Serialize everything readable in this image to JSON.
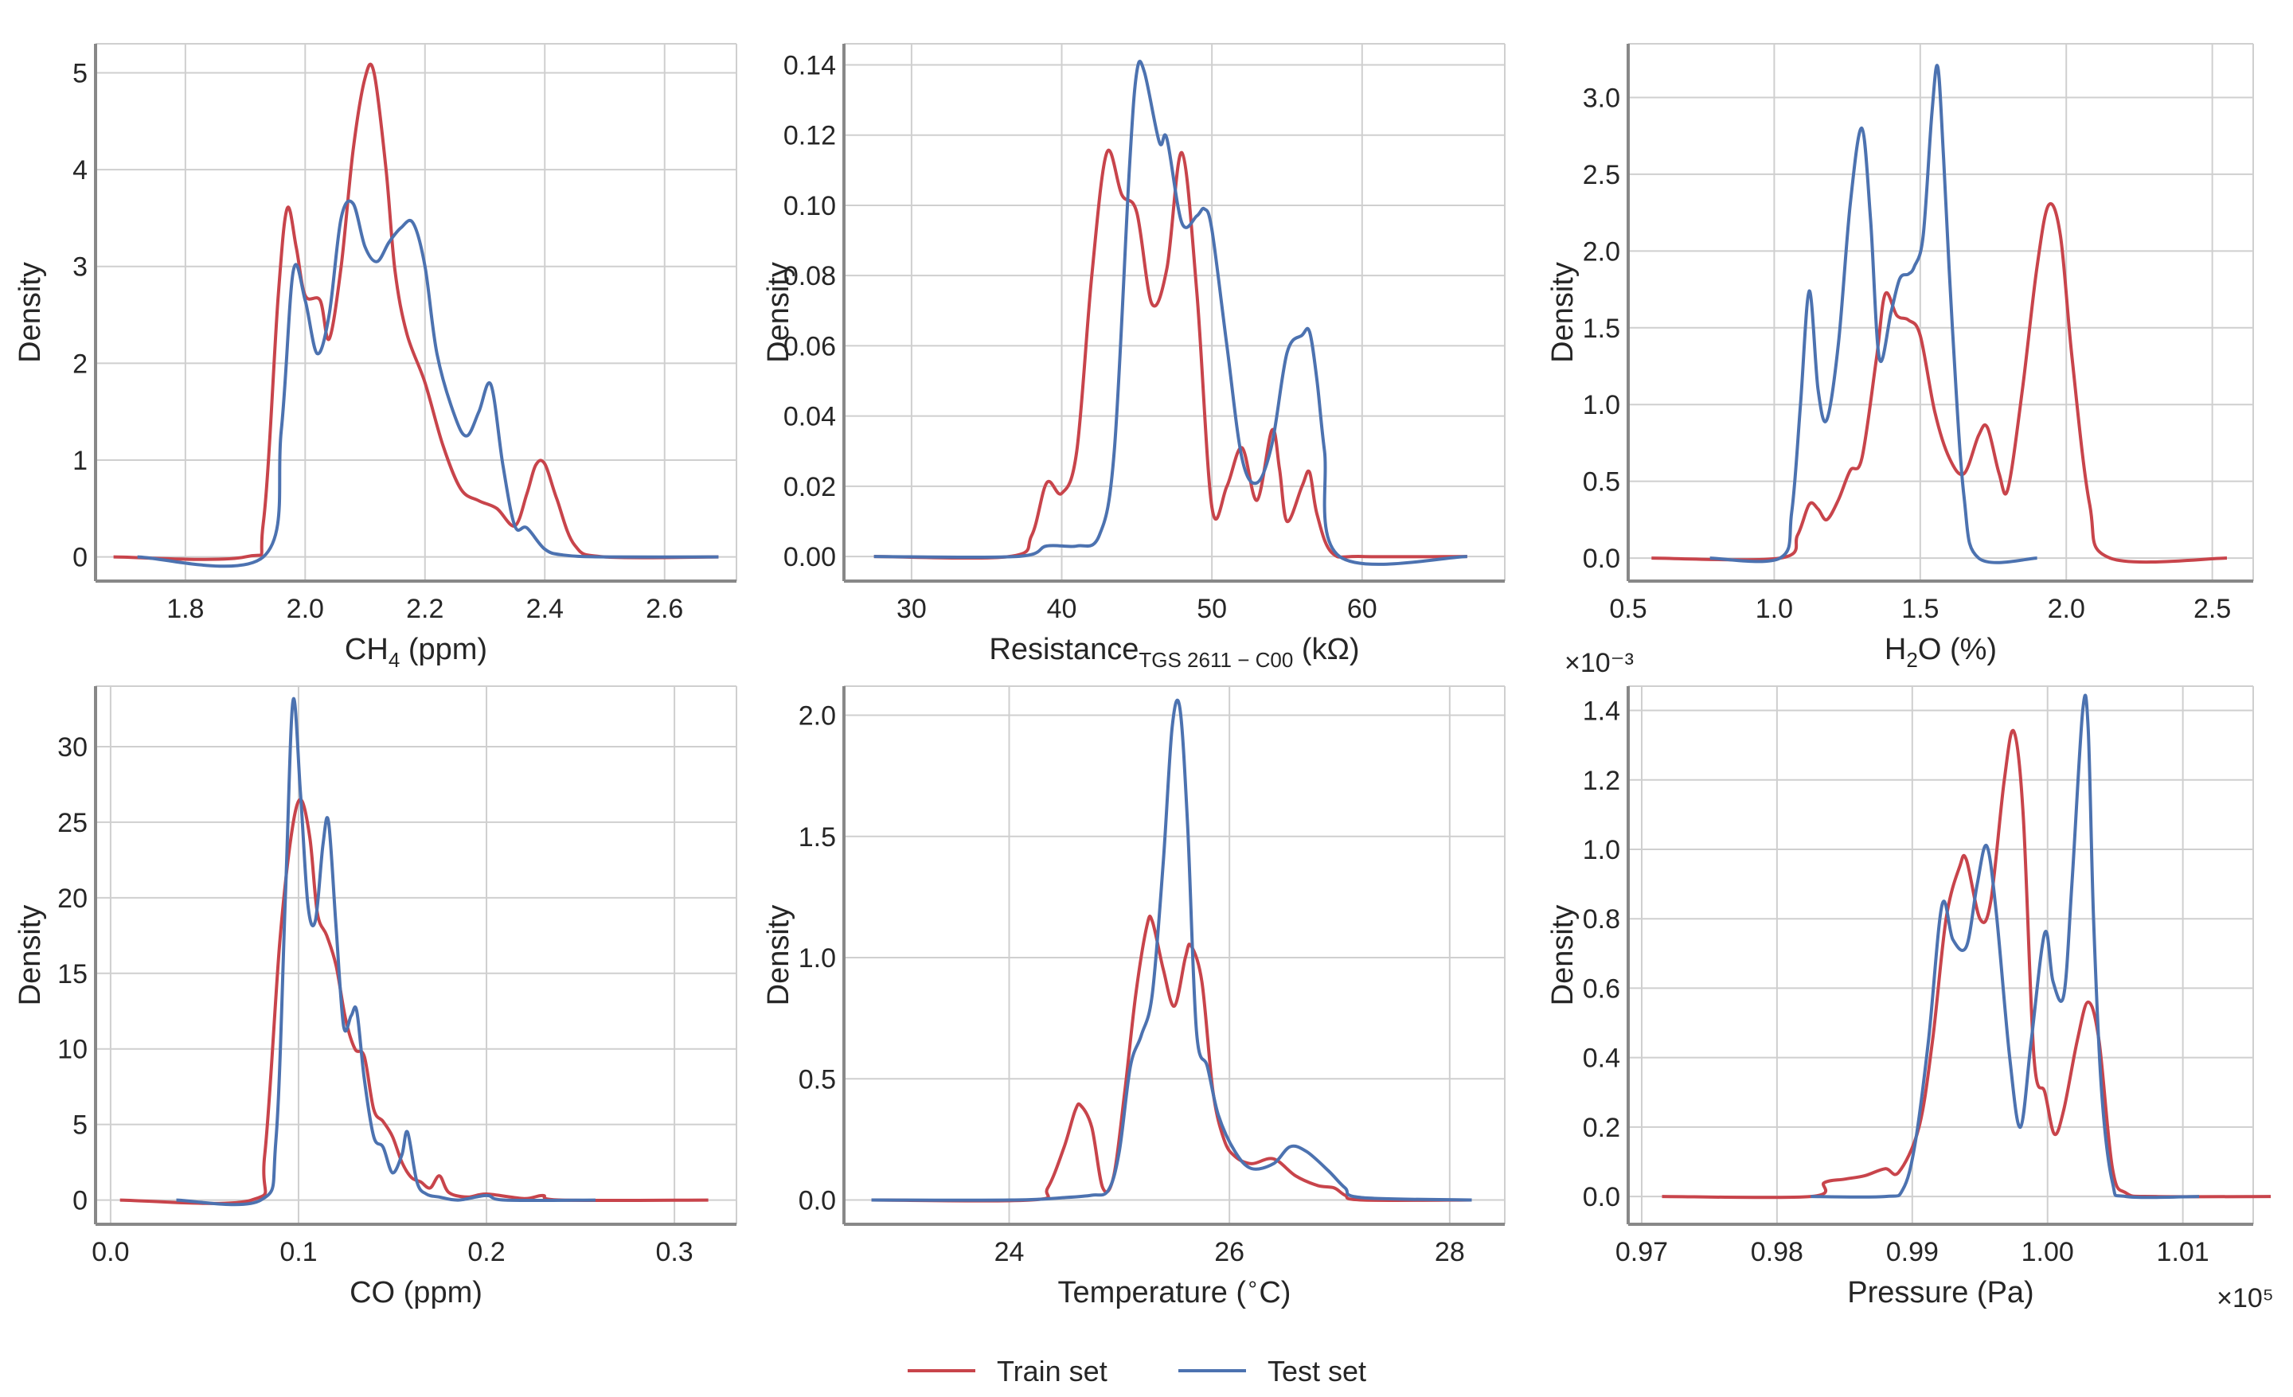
{
  "colors": {
    "train": "#c8444b",
    "test": "#4c72b0",
    "grid": "#cfcfcf",
    "spine": "#888888"
  },
  "legend": {
    "train_label": "Train set",
    "test_label": "Test set"
  },
  "chart_data": [
    {
      "type": "line",
      "title": "",
      "xlabel_main": "CH",
      "xlabel_sub": "4",
      "xlabel_rest": " (ppm)",
      "ylabel": "Density",
      "xlim": [
        1.65,
        2.72
      ],
      "ylim": [
        -0.25,
        5.3
      ],
      "xticks": [
        1.8,
        2.0,
        2.2,
        2.4,
        2.6
      ],
      "xtick_labels": [
        "1.8",
        "2.0",
        "2.2",
        "2.4",
        "2.6"
      ],
      "yticks": [
        0,
        1,
        2,
        3,
        4,
        5
      ],
      "ytick_labels": [
        "0",
        "1",
        "2",
        "3",
        "4",
        "5"
      ],
      "series": [
        {
          "name": "Train set",
          "x": [
            1.68,
            1.9,
            1.93,
            1.955,
            1.97,
            1.985,
            2.0,
            2.025,
            2.04,
            2.06,
            2.08,
            2.1,
            2.115,
            2.135,
            2.15,
            2.17,
            2.2,
            2.23,
            2.26,
            2.29,
            2.32,
            2.35,
            2.37,
            2.385,
            2.4,
            2.42,
            2.45,
            2.5,
            2.69
          ],
          "y": [
            0,
            0,
            0.35,
            2.7,
            3.6,
            3.2,
            2.7,
            2.65,
            2.25,
            3.0,
            4.2,
            4.95,
            5.0,
            4.0,
            2.95,
            2.3,
            1.8,
            1.15,
            0.7,
            0.58,
            0.5,
            0.32,
            0.65,
            0.95,
            0.96,
            0.6,
            0.12,
            0,
            0
          ]
        },
        {
          "name": "Test set",
          "x": [
            1.72,
            1.93,
            1.96,
            1.98,
            2.0,
            2.02,
            2.04,
            2.06,
            2.08,
            2.1,
            2.12,
            2.14,
            2.16,
            2.18,
            2.2,
            2.22,
            2.25,
            2.27,
            2.29,
            2.31,
            2.33,
            2.35,
            2.37,
            2.4,
            2.43,
            2.5,
            2.69
          ],
          "y": [
            0,
            0,
            1.3,
            2.95,
            2.65,
            2.1,
            2.5,
            3.5,
            3.65,
            3.2,
            3.05,
            3.25,
            3.4,
            3.45,
            3.0,
            2.1,
            1.45,
            1.25,
            1.5,
            1.78,
            0.95,
            0.32,
            0.3,
            0.08,
            0.02,
            0,
            0
          ]
        }
      ]
    },
    {
      "type": "line",
      "title": "",
      "xlabel_main": "Resistance",
      "xlabel_sub": "TGS 2611 − C00",
      "xlabel_rest": " (kΩ)",
      "ylabel": "Density",
      "xlim": [
        25.5,
        69.5
      ],
      "ylim": [
        -0.007,
        0.146
      ],
      "xticks": [
        30,
        40,
        50,
        60
      ],
      "xtick_labels": [
        "30",
        "40",
        "50",
        "60"
      ],
      "yticks": [
        0,
        0.02,
        0.04,
        0.06,
        0.08,
        0.1,
        0.12,
        0.14
      ],
      "ytick_labels": [
        "0.00",
        "0.02",
        "0.04",
        "0.06",
        "0.08",
        "0.10",
        "0.12",
        "0.14"
      ],
      "series": [
        {
          "name": "Train set",
          "x": [
            27.5,
            36.5,
            38,
            39,
            40,
            41,
            42,
            43,
            44,
            45,
            46,
            47,
            48,
            49,
            50,
            51,
            52,
            53,
            54,
            54.5,
            55,
            56,
            56.5,
            57,
            58,
            60,
            67
          ],
          "y": [
            0,
            0,
            0.006,
            0.021,
            0.018,
            0.03,
            0.08,
            0.115,
            0.103,
            0.098,
            0.072,
            0.082,
            0.115,
            0.075,
            0.014,
            0.02,
            0.031,
            0.016,
            0.036,
            0.025,
            0.01,
            0.02,
            0.024,
            0.012,
            0.001,
            0,
            0
          ]
        },
        {
          "name": "Test set",
          "x": [
            27.5,
            37,
            39,
            41,
            42.5,
            43.5,
            44.5,
            45,
            45.5,
            46.5,
            47,
            48,
            49,
            49.5,
            50,
            51,
            52,
            53,
            54,
            55,
            56,
            56.5,
            57,
            57.5,
            58.5,
            67
          ],
          "y": [
            0,
            0,
            0.003,
            0.003,
            0.006,
            0.03,
            0.11,
            0.138,
            0.138,
            0.118,
            0.119,
            0.095,
            0.097,
            0.099,
            0.093,
            0.06,
            0.028,
            0.021,
            0.032,
            0.058,
            0.063,
            0.064,
            0.05,
            0.03,
            0,
            0
          ]
        }
      ]
    },
    {
      "type": "line",
      "title": "",
      "xlabel_main": "H",
      "xlabel_sub": "2",
      "xlabel_rest": "O (%)",
      "ylabel": "Density",
      "xlim": [
        0.5,
        2.64
      ],
      "ylim": [
        -0.15,
        3.35
      ],
      "xticks": [
        0.5,
        1.0,
        1.5,
        2.0,
        2.5
      ],
      "xtick_labels": [
        "0.5",
        "1.0",
        "1.5",
        "2.0",
        "2.5"
      ],
      "yticks": [
        0,
        0.5,
        1.0,
        1.5,
        2.0,
        2.5,
        3.0
      ],
      "ytick_labels": [
        "0.0",
        "0.5",
        "1.0",
        "1.5",
        "2.0",
        "2.5",
        "3.0"
      ],
      "series": [
        {
          "name": "Train set",
          "x": [
            0.58,
            1.02,
            1.08,
            1.12,
            1.15,
            1.18,
            1.22,
            1.26,
            1.3,
            1.35,
            1.38,
            1.42,
            1.46,
            1.5,
            1.55,
            1.6,
            1.65,
            1.7,
            1.73,
            1.77,
            1.8,
            1.85,
            1.9,
            1.94,
            1.98,
            2.02,
            2.08,
            2.15,
            2.55
          ],
          "y": [
            0,
            0,
            0.15,
            0.35,
            0.32,
            0.25,
            0.38,
            0.57,
            0.65,
            1.3,
            1.72,
            1.58,
            1.55,
            1.45,
            0.95,
            0.65,
            0.55,
            0.8,
            0.85,
            0.55,
            0.45,
            1.1,
            1.9,
            2.3,
            2.1,
            1.3,
            0.35,
            0,
            0
          ]
        },
        {
          "name": "Test set",
          "x": [
            0.78,
            1.02,
            1.06,
            1.09,
            1.12,
            1.15,
            1.18,
            1.22,
            1.26,
            1.3,
            1.33,
            1.36,
            1.4,
            1.43,
            1.46,
            1.48,
            1.51,
            1.54,
            1.56,
            1.58,
            1.61,
            1.65,
            1.7,
            1.9
          ],
          "y": [
            0,
            0,
            0.3,
            1.0,
            1.74,
            1.1,
            0.9,
            1.4,
            2.3,
            2.8,
            2.2,
            1.3,
            1.6,
            1.82,
            1.85,
            1.9,
            2.1,
            2.9,
            3.2,
            2.6,
            1.5,
            0.4,
            0,
            0
          ]
        }
      ]
    },
    {
      "type": "line",
      "title": "",
      "xlabel_main": "CO (ppm)",
      "xlabel_sub": "",
      "xlabel_rest": "",
      "ylabel": "Density",
      "xlim": [
        -0.008,
        0.333
      ],
      "ylim": [
        -1.6,
        34
      ],
      "xticks": [
        0.0,
        0.1,
        0.2,
        0.3
      ],
      "xtick_labels": [
        "0.0",
        "0.1",
        "0.2",
        "0.3"
      ],
      "yticks": [
        0,
        5,
        10,
        15,
        20,
        25,
        30
      ],
      "ytick_labels": [
        "0",
        "5",
        "10",
        "15",
        "20",
        "25",
        "30"
      ],
      "series": [
        {
          "name": "Train set",
          "x": [
            0.005,
            0.075,
            0.082,
            0.09,
            0.096,
            0.101,
            0.106,
            0.11,
            0.115,
            0.12,
            0.125,
            0.13,
            0.135,
            0.14,
            0.145,
            0.15,
            0.155,
            0.16,
            0.165,
            0.17,
            0.175,
            0.18,
            0.19,
            0.2,
            0.22,
            0.23,
            0.24,
            0.318
          ],
          "y": [
            0,
            0,
            3,
            17,
            24,
            26.5,
            24,
            19,
            17.5,
            15.5,
            12,
            10,
            9.5,
            6,
            5.2,
            4.2,
            2.5,
            1.5,
            1.2,
            0.8,
            1.6,
            0.5,
            0.2,
            0.4,
            0.1,
            0.3,
            0,
            0
          ]
        },
        {
          "name": "Test set",
          "x": [
            0.035,
            0.08,
            0.088,
            0.093,
            0.097,
            0.101,
            0.105,
            0.109,
            0.113,
            0.116,
            0.12,
            0.124,
            0.128,
            0.131,
            0.135,
            0.14,
            0.145,
            0.15,
            0.155,
            0.158,
            0.163,
            0.168,
            0.175,
            0.185,
            0.2,
            0.21,
            0.258
          ],
          "y": [
            0,
            0,
            4,
            20,
            33,
            27,
            19.5,
            18.5,
            23.5,
            25,
            18,
            11.5,
            12.2,
            12.5,
            8,
            4.2,
            3.5,
            1.8,
            3,
            4.5,
            1.2,
            0.4,
            0.2,
            0,
            0.3,
            0,
            0
          ]
        }
      ]
    },
    {
      "type": "line",
      "title": "",
      "xlabel_main": "Temperature (",
      "xlabel_sup": "∘",
      "xlabel_rest": "C)",
      "ylabel": "Density",
      "xlim": [
        22.5,
        28.5
      ],
      "ylim": [
        -0.1,
        2.12
      ],
      "xticks": [
        24,
        26,
        28
      ],
      "xtick_labels": [
        "24",
        "26",
        "28"
      ],
      "yticks": [
        0,
        0.5,
        1.0,
        1.5,
        2.0
      ],
      "ytick_labels": [
        "0.0",
        "0.5",
        "1.0",
        "1.5",
        "2.0"
      ],
      "series": [
        {
          "name": "Train set",
          "x": [
            22.75,
            24.2,
            24.35,
            24.5,
            24.6,
            24.65,
            24.75,
            24.85,
            24.95,
            25.05,
            25.15,
            25.25,
            25.3,
            25.4,
            25.5,
            25.6,
            25.65,
            25.75,
            25.85,
            25.95,
            26.05,
            26.2,
            26.4,
            26.6,
            26.8,
            26.95,
            27.05,
            27.2,
            28.2
          ],
          "y": [
            0,
            0,
            0.05,
            0.22,
            0.37,
            0.39,
            0.3,
            0.05,
            0.1,
            0.45,
            0.85,
            1.13,
            1.15,
            0.95,
            0.8,
            1.0,
            1.05,
            0.9,
            0.45,
            0.25,
            0.18,
            0.15,
            0.17,
            0.1,
            0.06,
            0.05,
            0.02,
            0,
            0
          ]
        },
        {
          "name": "Test set",
          "x": [
            22.75,
            24.05,
            24.5,
            24.75,
            24.9,
            25.0,
            25.1,
            25.2,
            25.3,
            25.4,
            25.48,
            25.55,
            25.62,
            25.7,
            25.8,
            25.9,
            26.05,
            26.2,
            26.4,
            26.55,
            26.7,
            26.9,
            27.05,
            27.2,
            28.2
          ],
          "y": [
            0,
            0,
            0.01,
            0.02,
            0.04,
            0.2,
            0.55,
            0.68,
            0.85,
            1.4,
            1.95,
            2.03,
            1.55,
            0.7,
            0.55,
            0.35,
            0.2,
            0.13,
            0.15,
            0.22,
            0.2,
            0.12,
            0.05,
            0.01,
            0
          ]
        }
      ]
    },
    {
      "type": "line",
      "title": "",
      "xlabel_main": "Pressure (Pa)",
      "xlabel_sub": "",
      "xlabel_rest": "",
      "ylabel": "Density",
      "y_multiplier": "×10⁻³",
      "x_multiplier": "×10⁵",
      "xlim": [
        0.969,
        1.0152
      ],
      "ylim": [
        -0.08,
        1.47
      ],
      "xticks": [
        0.97,
        0.98,
        0.99,
        1.0,
        1.01
      ],
      "xtick_labels": [
        "0.97",
        "0.98",
        "0.99",
        "1.00",
        "1.01"
      ],
      "yticks": [
        0,
        0.2,
        0.4,
        0.6,
        0.8,
        1.0,
        1.2,
        1.4
      ],
      "ytick_labels": [
        "0.0",
        "0.2",
        "0.4",
        "0.6",
        "0.8",
        "1.0",
        "1.2",
        "1.4"
      ],
      "series": [
        {
          "name": "Train set",
          "x": [
            0.9715,
            0.9825,
            0.9835,
            0.985,
            0.9865,
            0.988,
            0.989,
            0.9905,
            0.9915,
            0.9925,
            0.9935,
            0.994,
            0.995,
            0.9958,
            0.9968,
            0.9975,
            0.9982,
            0.999,
            0.9998,
            1.0005,
            1.0012,
            1.0022,
            1.003,
            1.0038,
            1.0048,
            1.0058,
            1.008,
            1.0165
          ],
          "y": [
            0,
            0,
            0.04,
            0.05,
            0.06,
            0.08,
            0.07,
            0.2,
            0.45,
            0.8,
            0.95,
            0.97,
            0.8,
            0.85,
            1.2,
            1.34,
            1.1,
            0.4,
            0.3,
            0.18,
            0.25,
            0.45,
            0.56,
            0.45,
            0.08,
            0.01,
            0,
            0
          ]
        },
        {
          "name": "Test set",
          "x": [
            0.9825,
            0.988,
            0.9893,
            0.9902,
            0.9912,
            0.9922,
            0.993,
            0.994,
            0.9948,
            0.9955,
            0.9962,
            0.9972,
            0.998,
            0.9988,
            0.9998,
            1.0004,
            1.0012,
            1.0018,
            1.0026,
            1.003,
            1.0034,
            1.004,
            1.0048,
            1.0058,
            1.0112
          ],
          "y": [
            0,
            0,
            0.02,
            0.15,
            0.45,
            0.84,
            0.74,
            0.72,
            0.9,
            1.01,
            0.82,
            0.4,
            0.2,
            0.45,
            0.76,
            0.62,
            0.58,
            0.9,
            1.4,
            1.35,
            0.8,
            0.3,
            0.04,
            0,
            0
          ]
        }
      ]
    }
  ]
}
